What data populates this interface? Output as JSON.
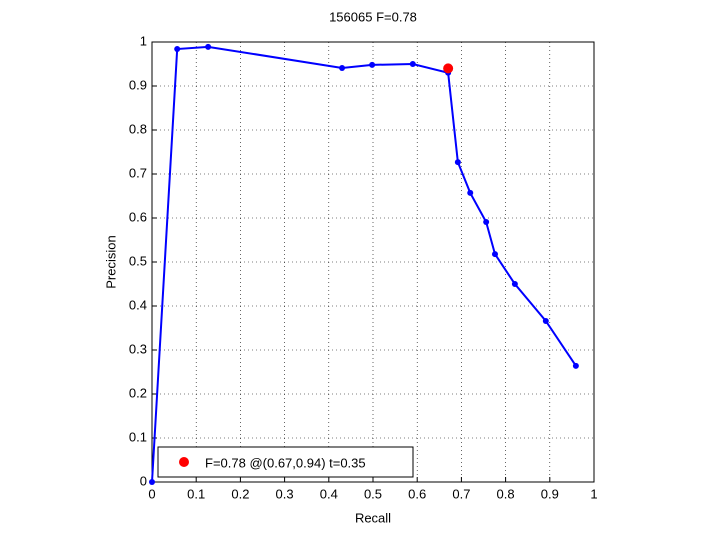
{
  "chart_data": {
    "type": "line",
    "title": "156065 F=0.78",
    "x_label": "Recall",
    "y_label": "Precision",
    "xlim": [
      0,
      1
    ],
    "ylim": [
      0,
      1
    ],
    "xticks": [
      0,
      0.1,
      0.2,
      0.3,
      0.4,
      0.5,
      0.6,
      0.7,
      0.8,
      0.9,
      1
    ],
    "yticks": [
      0,
      0.1,
      0.2,
      0.3,
      0.4,
      0.5,
      0.6,
      0.7,
      0.8,
      0.9,
      1
    ],
    "grid": true,
    "legend": "lower left",
    "series": [
      {
        "color": "#0000ff",
        "mode": "lines+markers",
        "x": [
          0,
          0.057,
          0.127,
          0.43,
          0.498,
          0.59,
          0.67,
          0.692,
          0.72,
          0.756,
          0.776,
          0.821,
          0.891,
          0.959
        ],
        "values": [
          0,
          0.984,
          0.989,
          0.941,
          0.948,
          0.95,
          0.93,
          0.727,
          0.657,
          0.591,
          0.518,
          0.45,
          0.366,
          0.264
        ]
      },
      {
        "name": "F=0.78 @(0.67,0.94) t=0.35",
        "color": "#ff0000",
        "mode": "markers",
        "x": [
          0.67
        ],
        "values": [
          0.94
        ]
      }
    ]
  }
}
